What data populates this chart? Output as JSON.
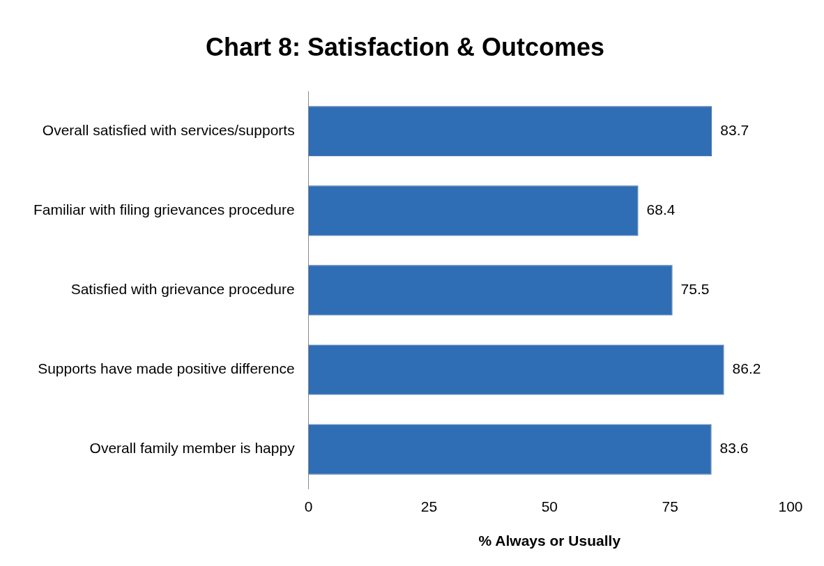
{
  "chart_data": {
    "type": "bar",
    "orientation": "horizontal",
    "title": "Chart 8: Satisfaction & Outcomes",
    "xlabel": "% Always or Usually",
    "categories": [
      "Overall satisfied with services/supports",
      "Familiar with filing grievances procedure",
      "Satisfied with grievance procedure",
      "Supports have made positive difference",
      "Overall family member is happy"
    ],
    "values": [
      83.7,
      68.4,
      75.5,
      86.2,
      83.6
    ],
    "color": "#2f6db5",
    "xlim": [
      0,
      100
    ],
    "xticks": [
      0,
      25,
      50,
      75,
      100
    ],
    "data_labels": true
  }
}
